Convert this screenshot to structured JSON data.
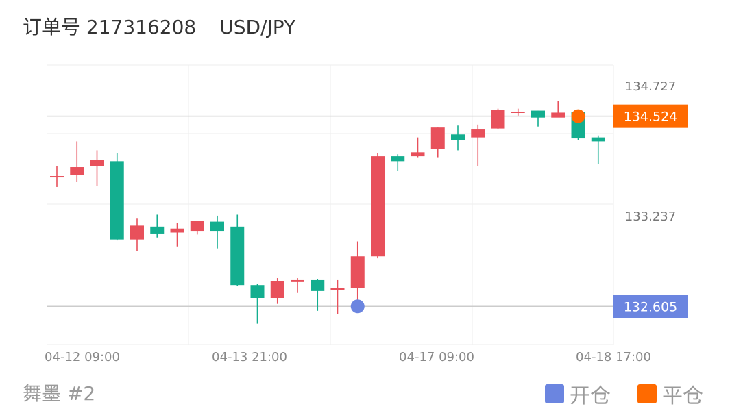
{
  "header": {
    "order_label": "订单号 217316208",
    "symbol": "USD/JPY"
  },
  "footer": {
    "strategy": "舞墨 #2"
  },
  "legend": [
    {
      "label": "开仓",
      "color": "#6b85e0"
    },
    {
      "label": "平仓",
      "color": "#ff6a00"
    }
  ],
  "colors": {
    "up": "#e8505b",
    "down": "#13ae8f",
    "open_marker": "#6b85e0",
    "close_marker": "#ff6a00"
  },
  "chart_data": {
    "type": "candlestick",
    "x_tick_labels": [
      "04-12 09:00",
      "04-13 21:00",
      "04-17 09:00",
      "04-18 17:00"
    ],
    "y_tick_labels": [
      "134.727",
      "133.237"
    ],
    "ylim": [
      132.22,
      135.04
    ],
    "price_lines": [
      {
        "label": "134.524",
        "value": 134.524,
        "color": "#ff6a00"
      },
      {
        "label": "132.605",
        "value": 132.605,
        "color": "#6b85e0"
      }
    ],
    "markers": [
      {
        "type": "open",
        "candle_index": 15,
        "price": 132.605
      },
      {
        "type": "close",
        "candle_index": 26,
        "price": 134.524
      }
    ],
    "candles": [
      {
        "o": 133.92,
        "h": 134.02,
        "l": 133.81,
        "c": 133.92
      },
      {
        "o": 133.93,
        "h": 134.27,
        "l": 133.86,
        "c": 134.01
      },
      {
        "o": 134.02,
        "h": 134.18,
        "l": 133.82,
        "c": 134.08
      },
      {
        "o": 134.07,
        "h": 134.15,
        "l": 133.27,
        "c": 133.28
      },
      {
        "o": 133.28,
        "h": 133.49,
        "l": 133.16,
        "c": 133.42
      },
      {
        "o": 133.41,
        "h": 133.53,
        "l": 133.3,
        "c": 133.34
      },
      {
        "o": 133.35,
        "h": 133.45,
        "l": 133.21,
        "c": 133.39
      },
      {
        "o": 133.36,
        "h": 133.46,
        "l": 133.33,
        "c": 133.47
      },
      {
        "o": 133.46,
        "h": 133.52,
        "l": 133.19,
        "c": 133.36
      },
      {
        "o": 133.41,
        "h": 133.53,
        "l": 132.81,
        "c": 132.82
      },
      {
        "o": 132.82,
        "h": 132.83,
        "l": 132.43,
        "c": 132.69
      },
      {
        "o": 132.69,
        "h": 132.89,
        "l": 132.63,
        "c": 132.86
      },
      {
        "o": 132.85,
        "h": 132.89,
        "l": 132.74,
        "c": 132.87
      },
      {
        "o": 132.87,
        "h": 132.88,
        "l": 132.56,
        "c": 132.76
      },
      {
        "o": 132.77,
        "h": 132.87,
        "l": 132.53,
        "c": 132.79
      },
      {
        "o": 132.79,
        "h": 133.26,
        "l": 132.54,
        "c": 133.11
      },
      {
        "o": 133.11,
        "h": 134.15,
        "l": 133.09,
        "c": 134.12
      },
      {
        "o": 134.12,
        "h": 134.14,
        "l": 133.97,
        "c": 134.07
      },
      {
        "o": 134.12,
        "h": 134.31,
        "l": 134.11,
        "c": 134.16
      },
      {
        "o": 134.19,
        "h": 134.41,
        "l": 134.11,
        "c": 134.41
      },
      {
        "o": 134.34,
        "h": 134.43,
        "l": 134.18,
        "c": 134.28
      },
      {
        "o": 134.31,
        "h": 134.44,
        "l": 134.02,
        "c": 134.39
      },
      {
        "o": 134.4,
        "h": 134.6,
        "l": 134.39,
        "c": 134.59
      },
      {
        "o": 134.57,
        "h": 134.6,
        "l": 134.53,
        "c": 134.57
      },
      {
        "o": 134.58,
        "h": 134.58,
        "l": 134.42,
        "c": 134.51
      },
      {
        "o": 134.51,
        "h": 134.68,
        "l": 134.52,
        "c": 134.56
      },
      {
        "o": 134.57,
        "h": 134.58,
        "l": 134.28,
        "c": 134.3
      },
      {
        "o": 134.31,
        "h": 134.33,
        "l": 134.04,
        "c": 134.27
      }
    ]
  }
}
